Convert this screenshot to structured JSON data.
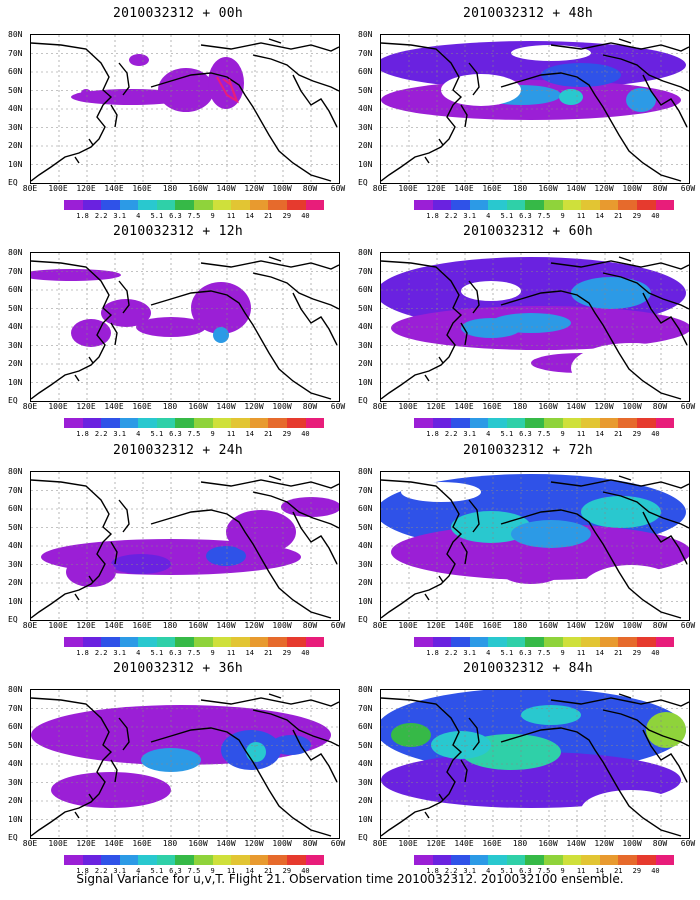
{
  "colors": [
    "#9b1fd6",
    "#6a22e0",
    "#2f52e8",
    "#2c9ae6",
    "#29c8cf",
    "#2fd0a8",
    "#36b947",
    "#8fd33b",
    "#cfe03b",
    "#e2c533",
    "#e89a2f",
    "#e66a2c",
    "#e63a2e",
    "#e81d7a"
  ],
  "colorbar_labels": [
    "1.8",
    "2.2",
    "3.1",
    "4",
    "5.1",
    "6.3",
    "7.5",
    "9",
    "11",
    "14",
    "21",
    "29",
    "40"
  ],
  "y_labels": [
    "80N",
    "70N",
    "60N",
    "50N",
    "40N",
    "30N",
    "20N",
    "10N",
    "EQ"
  ],
  "x_labels": [
    "80E",
    "100E",
    "120E",
    "140E",
    "160E",
    "180",
    "160W",
    "140W",
    "120W",
    "100W",
    "80W",
    "60W"
  ],
  "panels": [
    {
      "title": "2010032312 + 00h",
      "intensity": 0
    },
    {
      "title": "2010032312 + 12h",
      "intensity": 1
    },
    {
      "title": "2010032312 + 24h",
      "intensity": 2
    },
    {
      "title": "2010032312 + 36h",
      "intensity": 3
    },
    {
      "title": "2010032312 + 48h",
      "intensity": 4
    },
    {
      "title": "2010032312 + 60h",
      "intensity": 5
    },
    {
      "title": "2010032312 + 72h",
      "intensity": 6
    },
    {
      "title": "2010032312 + 84h",
      "intensity": 7
    }
  ],
  "footer": "Signal Variance for u,v,T. Flight 21. Observation time 2010032312. 2010032100 ensemble."
}
